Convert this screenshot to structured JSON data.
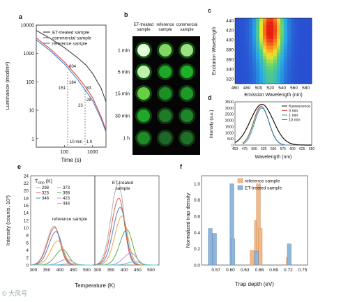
{
  "panels": {
    "a": {
      "letter": "a"
    },
    "b": {
      "letter": "b"
    },
    "c": {
      "letter": "c"
    },
    "d": {
      "letter": "d"
    },
    "e": {
      "letter": "e"
    },
    "f": {
      "letter": "f"
    }
  },
  "colors": {
    "et_treated": "#404040",
    "commercial": "#d9443a",
    "reference": "#3f7fc8",
    "bar_reference": "#f2b988",
    "bar_et": "#8fb6dc"
  },
  "photo_grid": {
    "columns": [
      "ET-treated\nsample",
      "reference\nsample",
      "commercial\nsample"
    ],
    "rows": [
      "1 min",
      "5 min",
      "15 min",
      "30 min",
      "1 h"
    ],
    "brightness": [
      [
        1.0,
        0.8,
        0.85
      ],
      [
        0.92,
        0.55,
        0.6
      ],
      [
        0.75,
        0.42,
        0.48
      ],
      [
        0.55,
        0.32,
        0.38
      ],
      [
        0.4,
        0.22,
        0.26
      ]
    ]
  },
  "watermark": "© 大风号",
  "chart_data": [
    {
      "panel": "a",
      "type": "line",
      "xlabel": "Time (s)",
      "ylabel": "Luminance (mcd/m²)",
      "xscale": "log",
      "yscale": "log",
      "xlim": [
        10,
        3000
      ],
      "ylim": [
        0.5,
        10000
      ],
      "x_ticks": [
        "100",
        "1000"
      ],
      "y_ticks": [
        "10000",
        "1000",
        "100",
        "10",
        "1"
      ],
      "legend": [
        "ET-treated sample",
        "commercial sample",
        "reference sample"
      ],
      "series": [
        {
          "name": "ET-treated sample",
          "x": [
            10,
            30,
            100,
            300,
            600,
            1000,
            2000,
            3000
          ],
          "y": [
            6500,
            3500,
            1600,
            700,
            380,
            200,
            60,
            20
          ]
        },
        {
          "name": "commercial sample",
          "x": [
            10,
            30,
            100,
            300,
            600,
            1000,
            2000,
            3000
          ],
          "y": [
            3500,
            1500,
            500,
            150,
            60,
            28,
            6,
            2
          ]
        },
        {
          "name": "reference sample",
          "x": [
            10,
            30,
            100,
            300,
            600,
            1000,
            2000,
            3000
          ],
          "y": [
            3000,
            1300,
            420,
            120,
            45,
            22,
            5,
            1.7
          ]
        }
      ],
      "annotations": [
        "604",
        "184",
        "151",
        "83",
        "28",
        "23",
        "10 min",
        "1 h"
      ]
    },
    {
      "panel": "c",
      "type": "heatmap",
      "xlabel": "Emission Wavelength (nm)",
      "ylabel": "Excitation Wavelength",
      "x_ticks": [
        "460",
        "480",
        "500",
        "520",
        "540",
        "560",
        "580"
      ],
      "y_ticks": [
        "440",
        "420",
        "400",
        "380",
        "360",
        "340",
        "320"
      ],
      "xlim": [
        460,
        590
      ],
      "ylim": [
        310,
        445
      ],
      "peak": {
        "x": 520,
        "y": 420
      }
    },
    {
      "panel": "d",
      "type": "line",
      "xlabel": "Wavelength (nm)",
      "ylabel": "Intensity (a.u.)",
      "xlim": [
        450,
        650
      ],
      "ylim": [
        0,
        3500
      ],
      "x_ticks": [
        "450",
        "475",
        "500",
        "525",
        "550",
        "575",
        "600",
        "625",
        "650"
      ],
      "y_ticks": [
        "0",
        "500",
        "1000",
        "1500",
        "2000",
        "2500",
        "3000",
        "3500"
      ],
      "legend": [
        "fluorescence",
        "0 min",
        "1 min",
        "10 min"
      ],
      "series": [
        {
          "name": "fluorescence",
          "center": 520,
          "sigma": 30,
          "peak": 3300
        },
        {
          "name": "0 min",
          "center": 518,
          "sigma": 20,
          "peak": 3150
        },
        {
          "name": "1 min",
          "center": 519,
          "sigma": 20,
          "peak": 3100
        },
        {
          "name": "10 min",
          "center": 520,
          "sigma": 19,
          "peak": 3000
        }
      ]
    },
    {
      "panel": "e",
      "type": "line",
      "xlabel": "Temperature (K)",
      "ylabel": "Intensity (counts, 10³)",
      "ylim": [
        0,
        24
      ],
      "x_ticks": [
        "300",
        "350",
        "400",
        "450",
        "500",
        "300",
        "350",
        "400",
        "450",
        "500"
      ],
      "y_ticks": [
        "0",
        "2",
        "4",
        "6",
        "8",
        "10",
        "12",
        "14",
        "16",
        "18",
        "20",
        "22",
        "24"
      ],
      "legend_title": "T",
      "legend_title_sub": "stop",
      "legend_title_suffix": " (K)",
      "legend": [
        "298",
        "323",
        "348",
        "373",
        "398",
        "423",
        "448"
      ],
      "subplot_labels": [
        "reference sample",
        "ET-treated\nsample"
      ],
      "series_colors": [
        "#b0b0b0",
        "#e05a4f",
        "#4a86c5",
        "#f0a050",
        "#56b04c",
        "#b48fd4",
        "#5fc8d8"
      ],
      "reference_peaks": [
        10.5,
        10.1,
        9.0,
        6.5,
        4.2,
        1.5,
        0.4
      ],
      "et_peaks": [
        22.0,
        18.0,
        15.5,
        13.2,
        9.5,
        3.2,
        0.9
      ],
      "peak_temps": [
        378,
        380,
        385,
        392,
        410,
        425,
        440
      ]
    },
    {
      "panel": "f",
      "type": "bar",
      "xlabel": "Trap depth  (eV)",
      "ylabel": "Normalized trap density",
      "xlim": [
        0.54,
        0.76
      ],
      "ylim": [
        0,
        1.1
      ],
      "x_ticks": [
        "0.57",
        "0.60",
        "0.63",
        "0.66",
        "0.69",
        "0.72",
        "0.75"
      ],
      "y_ticks": [
        "0.0",
        "0.2",
        "0.4",
        "0.6",
        "0.8",
        "1.0"
      ],
      "legend": [
        "reference sample",
        "ET-treated sample"
      ],
      "bar_width": 0.008,
      "series": [
        {
          "name": "reference sample",
          "x": [
            0.645,
            0.654,
            0.658,
            0.662,
            0.72
          ],
          "y": [
            0.18,
            0.55,
            1.0,
            0.45,
            0.09
          ]
        },
        {
          "name": "ET-treated sample",
          "x": [
            0.558,
            0.567,
            0.603,
            0.605,
            0.654,
            0.722
          ],
          "y": [
            0.45,
            0.39,
            1.0,
            0.32,
            0.17,
            0.26
          ]
        }
      ]
    }
  ]
}
